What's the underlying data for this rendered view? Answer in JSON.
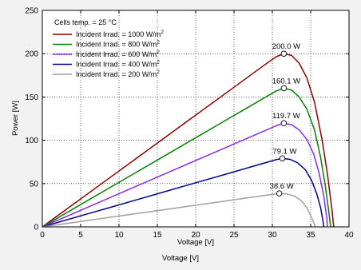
{
  "chart_data": {
    "type": "line",
    "xlabel": "Voltage [V]",
    "ylabel": "Power [W]",
    "xlim": [
      0,
      40
    ],
    "ylim": [
      0,
      250
    ],
    "xticks": [
      0,
      5,
      10,
      15,
      20,
      25,
      30,
      35,
      40
    ],
    "yticks": [
      0,
      50,
      100,
      150,
      200,
      250
    ],
    "grid": true,
    "legend": {
      "title": "Cells temp. = 25 °C",
      "placement": "top-left"
    },
    "series": [
      {
        "name": "Incident Irrad. = 1000 W/m²",
        "label_prefix": "Incident Irrad. = 1000 W/m",
        "label_sup": "2",
        "color": "#8b0000",
        "max_power_label": "200.0 W",
        "x": [
          0,
          4,
          8,
          12,
          16,
          20,
          24,
          27,
          29,
          30.5,
          31.5,
          32.5,
          33.5,
          34.5,
          35.5,
          36.5,
          37.2,
          37.8,
          38.0
        ],
        "y": [
          0,
          25.8,
          51.6,
          77.4,
          103.2,
          129.0,
          154.8,
          174.2,
          187.1,
          196.5,
          200.0,
          198.0,
          189.0,
          172.0,
          144.0,
          100.0,
          60.0,
          18.0,
          0
        ]
      },
      {
        "name": "Incident Irrad. = 800 W/m²",
        "label_prefix": "Incident Irrad. = 800 W/m",
        "label_sup": "2",
        "color": "#008000",
        "max_power_label": "160.1 W",
        "x": [
          0,
          4,
          8,
          12,
          16,
          20,
          24,
          27,
          29,
          30.5,
          31.5,
          32.5,
          33.5,
          34.5,
          35.5,
          36.3,
          36.9,
          37.4,
          37.6
        ],
        "y": [
          0,
          20.6,
          41.2,
          61.7,
          82.3,
          102.9,
          123.5,
          138.9,
          149.2,
          156.9,
          160.1,
          158.0,
          150.0,
          136.0,
          112.0,
          80.0,
          48.0,
          15.0,
          0
        ]
      },
      {
        "name": "Incident Irrad. = 600 W/m²",
        "label_prefix": "Incident Irrad. = 600 W/m",
        "label_sup": "2",
        "color": "#8a2be2",
        "max_power_label": "119.7 W",
        "x": [
          0,
          4,
          8,
          12,
          16,
          20,
          24,
          27,
          29,
          30.5,
          31.5,
          32.5,
          33.5,
          34.5,
          35.4,
          36.1,
          36.7,
          37.1,
          37.2
        ],
        "y": [
          0,
          15.3,
          30.6,
          45.9,
          61.3,
          76.6,
          91.9,
          103.4,
          111.0,
          116.8,
          119.7,
          118.0,
          112.0,
          101.0,
          84.0,
          62.0,
          36.0,
          10.0,
          0
        ]
      },
      {
        "name": "Incident Irrad. = 400 W/m²",
        "label_prefix": "Incident Irrad. = 400 W/m",
        "label_sup": "2",
        "color": "#00008b",
        "max_power_label": "79.1 W",
        "x": [
          0,
          4,
          8,
          12,
          16,
          20,
          24,
          27,
          29,
          30.5,
          31.3,
          32.3,
          33.3,
          34.3,
          35.1,
          35.8,
          36.3,
          36.6,
          36.7
        ],
        "y": [
          0,
          10.2,
          20.3,
          30.5,
          40.7,
          50.9,
          61.0,
          68.7,
          73.8,
          77.6,
          79.1,
          78.0,
          74.0,
          66.0,
          54.0,
          38.0,
          22.0,
          7.0,
          0
        ]
      },
      {
        "name": "Incident Irrad. = 200 W/m²",
        "label_prefix": "Incident Irrad. = 200 W/m",
        "label_sup": "2",
        "color": "#a0a0a0",
        "max_power_label": "38.6 W",
        "x": [
          0,
          4,
          8,
          12,
          16,
          20,
          24,
          27,
          29,
          30.2,
          30.9,
          31.9,
          32.9,
          33.8,
          34.5,
          35.0,
          35.4,
          35.6
        ],
        "y": [
          0,
          5.0,
          10.0,
          15.0,
          20.0,
          25.0,
          30.0,
          33.8,
          36.3,
          37.8,
          38.6,
          38.0,
          35.5,
          30.0,
          22.0,
          13.0,
          5.0,
          0
        ]
      }
    ],
    "max_points": [
      {
        "x": 31.5,
        "y": 200.0
      },
      {
        "x": 31.5,
        "y": 160.1
      },
      {
        "x": 31.5,
        "y": 119.7
      },
      {
        "x": 31.3,
        "y": 79.1
      },
      {
        "x": 30.9,
        "y": 38.6
      }
    ]
  },
  "caption": "Voltage [V]"
}
